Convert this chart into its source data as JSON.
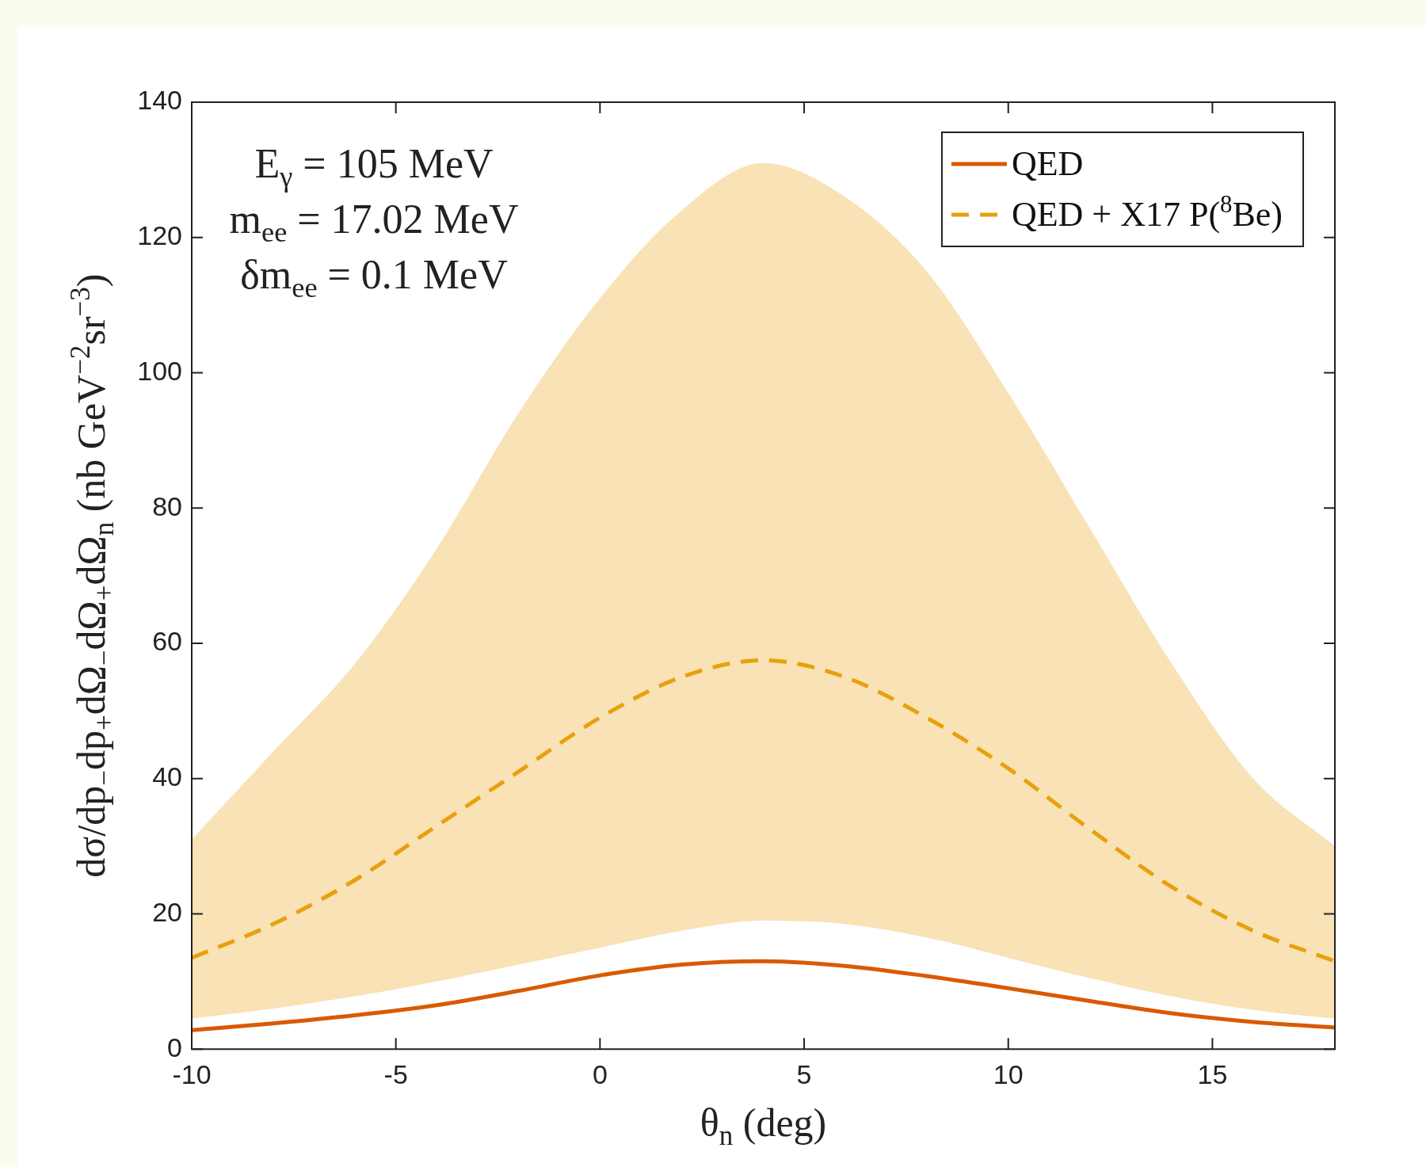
{
  "chart_data": {
    "type": "line",
    "xlabel": "θ$_{n}$ (deg)",
    "ylabel": "dσ/dp$_{−}$dp$_{+}$dΩ$_{−}$dΩ$_{+}$dΩ$_{n}$ (nb GeV$^{−2}$sr$^{−3}$)",
    "annotations": [
      "E$_{γ}$ = 105 MeV",
      "m$_{ee}$ = 17.02 MeV",
      "δm$_{ee}$ = 0.1 MeV"
    ],
    "x": [
      -10,
      -8,
      -6,
      -4,
      -2,
      0,
      2,
      4,
      6,
      8,
      10,
      12,
      14,
      16,
      18
    ],
    "series": [
      {
        "name": "QED",
        "color": "#d95a00",
        "line_style": "solid",
        "values": [
          2.8,
          3.8,
          5.0,
          6.5,
          8.6,
          10.9,
          12.5,
          13.0,
          12.3,
          10.8,
          9.0,
          7.1,
          5.3,
          4.0,
          3.2
        ]
      },
      {
        "name": "QED + X17 P($^{8}$Be)",
        "color": "#e8a00c",
        "line_style": "dashed",
        "values": [
          13.5,
          18.5,
          25,
          33,
          41,
          49,
          55,
          57.5,
          55,
          49,
          41.5,
          32.5,
          24,
          17.5,
          13
        ],
        "lower": [
          4.5,
          6.0,
          7.8,
          10,
          12.5,
          15,
          17.5,
          19,
          18.5,
          16.5,
          13.5,
          10.5,
          7.8,
          5.8,
          4.5
        ],
        "upper": [
          31,
          44,
          57,
          74,
          94,
          111,
          124,
          131,
          126,
          115,
          97,
          77,
          57,
          40,
          30
        ]
      }
    ],
    "xlim": [
      -10,
      18
    ],
    "xticks": [
      -10,
      -5,
      0,
      5,
      10,
      15
    ],
    "ylim": [
      0,
      140
    ],
    "yticks": [
      0,
      20,
      40,
      60,
      80,
      100,
      120,
      140
    ],
    "grid": false,
    "legend": "top right",
    "marker": "none"
  }
}
